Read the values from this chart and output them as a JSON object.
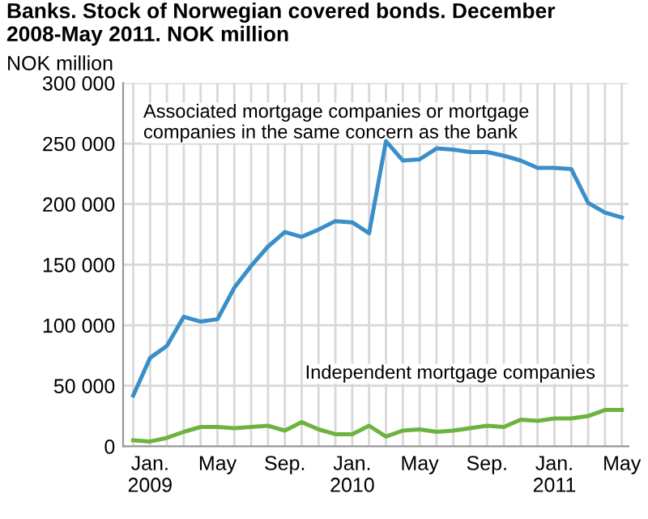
{
  "chart_data": {
    "type": "line",
    "title": "Banks. Stock of Norwegian covered bonds. December 2008-May 2011. NOK million",
    "ylabel": "NOK million",
    "categories": [
      null,
      "Jan.\n2009",
      null,
      null,
      null,
      "May",
      null,
      null,
      null,
      "Sep.",
      null,
      null,
      null,
      "Jan.\n2010",
      null,
      null,
      null,
      "May",
      null,
      null,
      null,
      "Sep.",
      null,
      null,
      null,
      "Jan.\n2011",
      null,
      null,
      null,
      "May"
    ],
    "series": [
      {
        "color": "#3a8fc8",
        "values": [
          42000,
          73000,
          83000,
          107000,
          103000,
          105000,
          131000,
          149000,
          165000,
          177000,
          173000,
          179000,
          186000,
          185000,
          176000,
          252000,
          236000,
          237000,
          246000,
          245000,
          243000,
          243000,
          240000,
          236000,
          230000,
          230000,
          229000,
          201000,
          193000,
          189000
        ]
      },
      {
        "color": "#6db33f",
        "values": [
          5000,
          4000,
          7000,
          12000,
          16000,
          16000,
          15000,
          16000,
          17000,
          13000,
          20000,
          14000,
          10000,
          10000,
          17000,
          8000,
          13000,
          14000,
          12000,
          13000,
          15000,
          17000,
          16000,
          22000,
          21000,
          23000,
          23000,
          25000,
          30000,
          30000
        ]
      }
    ],
    "annotations": [
      "Associated mortgage companies or mortgage\ncompanies in the same concern as the bank",
      "Independent mortgage companies"
    ],
    "ylim": [
      0,
      300000
    ],
    "yticks": [
      {
        "value": 0,
        "label": "0"
      },
      {
        "value": 50000,
        "label": "50 000"
      },
      {
        "value": 100000,
        "label": "100 000"
      },
      {
        "value": 150000,
        "label": "150 000"
      },
      {
        "value": 200000,
        "label": "200 000"
      },
      {
        "value": 250000,
        "label": "250 000"
      },
      {
        "value": 300000,
        "label": "300 000"
      }
    ],
    "grid": true,
    "legend": false,
    "marker": "none",
    "line_style": "solid"
  }
}
